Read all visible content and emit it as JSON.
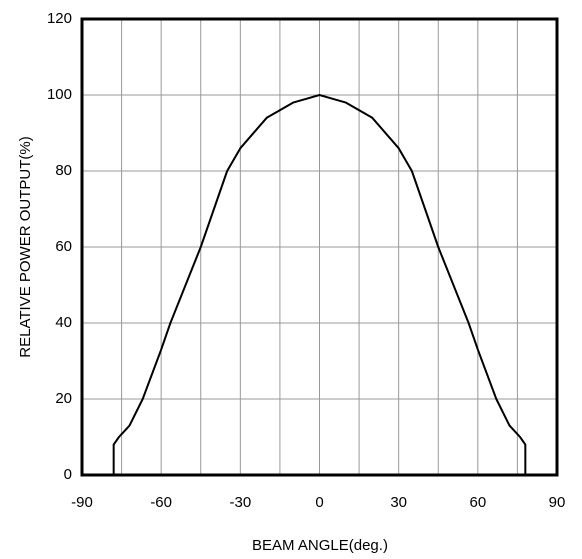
{
  "chart_data": {
    "type": "line",
    "x_label": "BEAM ANGLE(deg.)",
    "y_label": "RELATIVE POWER OUTPUT(%)",
    "x": [
      -78,
      -78,
      -76,
      -72,
      -67,
      -60,
      -56.5,
      -45,
      -35,
      -30,
      -20,
      -10,
      -5,
      0,
      5,
      10,
      20,
      30,
      35,
      45,
      56.5,
      60,
      67,
      72,
      76,
      78,
      78
    ],
    "series": [
      {
        "color": "#000000",
        "values": [
          0,
          8,
          10,
          13,
          20,
          33,
          40,
          60,
          80,
          86,
          94,
          98,
          99,
          100,
          99,
          98,
          94,
          86,
          80,
          60,
          40,
          33,
          20,
          13,
          10,
          8,
          0
        ]
      }
    ],
    "xlim": [
      -90,
      90
    ],
    "xticks": [
      -90,
      -60,
      -30,
      0,
      30,
      60,
      90
    ],
    "xminor": [
      -75,
      -45,
      -15,
      15,
      45,
      75
    ],
    "ylim": [
      0,
      120
    ],
    "yticks": [
      0,
      20,
      40,
      60,
      80,
      100,
      120
    ],
    "grid": true
  }
}
